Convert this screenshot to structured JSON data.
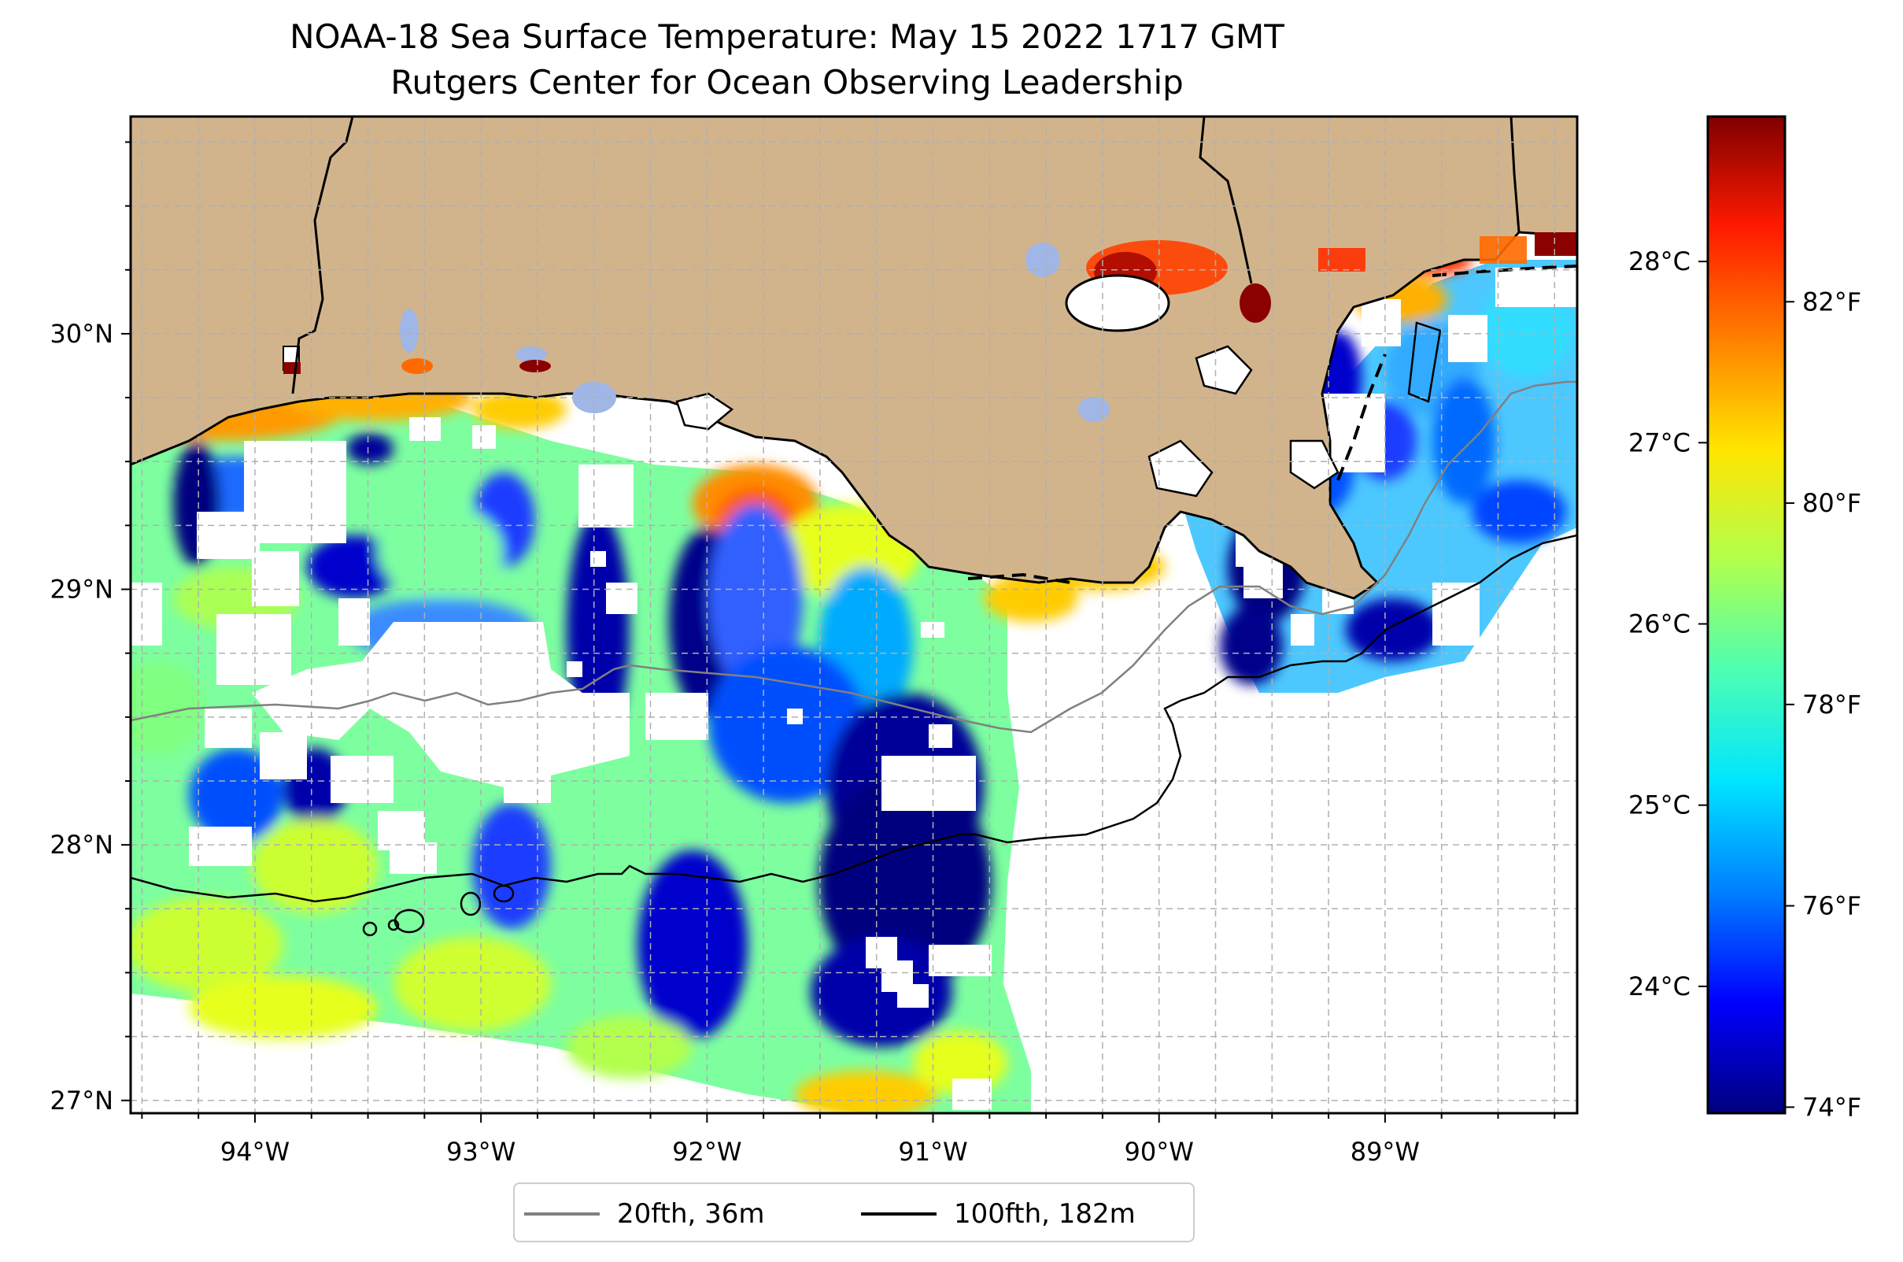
{
  "title": "NOAA-18 Sea Surface Temperature: May 15 2022 1717 GMT",
  "subtitle": "Rutgers Center for Ocean Observing Leadership",
  "colors": {
    "land": "#d2b48c",
    "lakes": "#9fb6e6",
    "no_data": "#ffffff",
    "isobath_20": "#808080",
    "isobath_100": "#000000",
    "colormap": [
      "#00007f",
      "#0000ff",
      "#007fff",
      "#00e5ff",
      "#4dffb2",
      "#b2ff4d",
      "#ffe500",
      "#ff7f00",
      "#ff1a00",
      "#7f0000"
    ]
  },
  "chart_data": {
    "type": "heatmap",
    "title": "NOAA-18 Sea Surface Temperature: May 15 2022 1717 GMT",
    "subtitle": "Rutgers Center for Ocean Observing Leadership",
    "lon_range": [
      -94.55,
      -88.15
    ],
    "lat_range": [
      26.95,
      30.85
    ],
    "x_ticks": [
      -94,
      -93,
      -92,
      -91,
      -90,
      -89
    ],
    "x_tick_labels": [
      "94°W",
      "93°W",
      "92°W",
      "91°W",
      "90°W",
      "89°W"
    ],
    "y_ticks": [
      27,
      28,
      29,
      30
    ],
    "y_tick_labels": [
      "27°N",
      "28°N",
      "29°N",
      "30°N"
    ],
    "grid": true,
    "colorbar": {
      "range_c": [
        23.3,
        28.8
      ],
      "c_ticks": [
        24,
        25,
        26,
        27,
        28
      ],
      "c_tick_labels": [
        "24°C",
        "25°C",
        "26°C",
        "27°C",
        "28°C"
      ],
      "f_ticks": [
        74,
        76,
        78,
        80,
        82
      ],
      "f_tick_labels": [
        "74°F",
        "76°F",
        "78°F",
        "80°F",
        "82°F"
      ]
    },
    "legend": {
      "placement": "bottom-center",
      "entries": [
        {
          "label": "20fth, 36m",
          "color": "#808080"
        },
        {
          "label": "100fth, 182m",
          "color": "#000000"
        }
      ]
    }
  }
}
